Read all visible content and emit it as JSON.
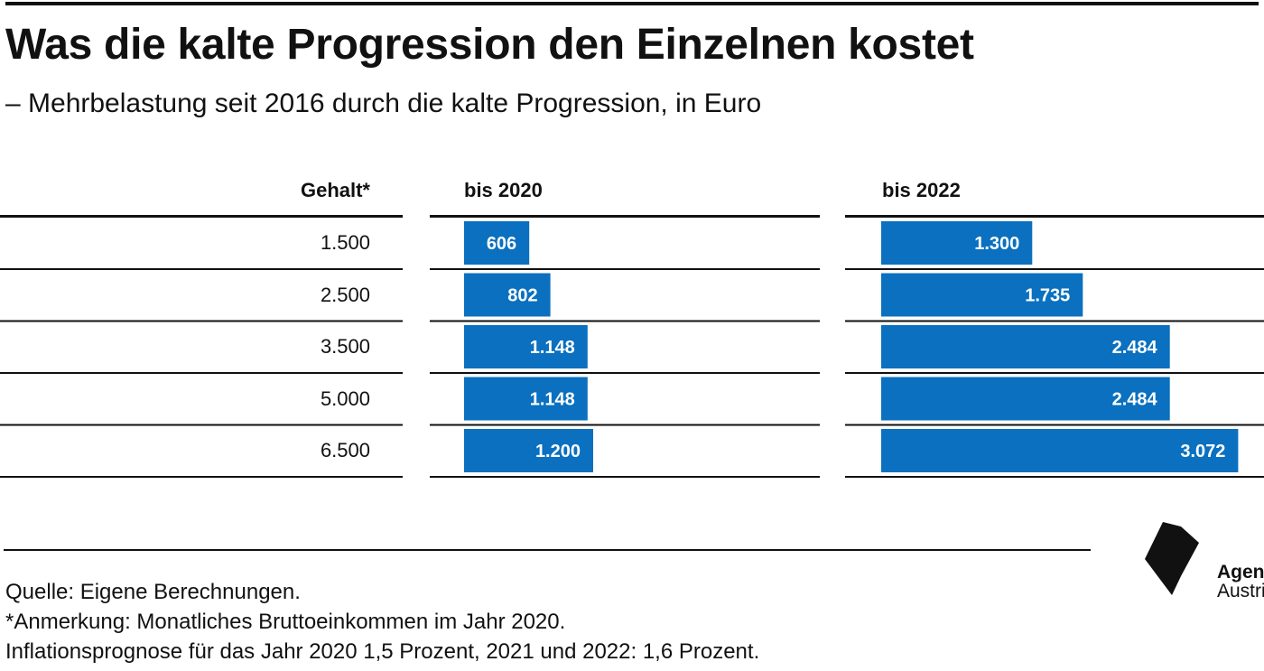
{
  "title": "Was die kalte Progression den Einzelnen kostet",
  "subtitle": "– Mehrbelastung seit 2016 durch die kalte Progression, in Euro",
  "columns": {
    "gehalt": "Gehalt*",
    "y2020": "bis 2020",
    "y2022": "bis 2022"
  },
  "colors": {
    "bar": "#0a70bf",
    "text": "#111111"
  },
  "chart_data": {
    "type": "bar",
    "orientation": "horizontal",
    "categories": [
      "1.500",
      "2.500",
      "3.500",
      "5.000",
      "6.500"
    ],
    "series": [
      {
        "name": "bis 2020",
        "values": [
          606,
          802,
          1148,
          1148,
          1200
        ],
        "labels": [
          "606",
          "802",
          "1.148",
          "1.148",
          "1.200"
        ]
      },
      {
        "name": "bis 2022",
        "values": [
          1300,
          1735,
          2484,
          2484,
          3072
        ],
        "labels": [
          "1.300",
          "1.735",
          "2.484",
          "2.484",
          "3.072"
        ]
      }
    ],
    "xlabel": "",
    "ylabel": "Gehalt*",
    "grid": false,
    "legend": "none"
  },
  "footer": {
    "source": "Quelle: Eigene Berechnungen.",
    "note": "*Anmerkung: Monatliches Bruttoeinkommen im Jahr 2020.",
    "inflation": "Inflationsprognose für das Jahr 2020 1,5 Prozent, 2021 und 2022: 1,6 Prozent."
  },
  "logo": {
    "line1": "Agenda",
    "line2": "Austria"
  }
}
